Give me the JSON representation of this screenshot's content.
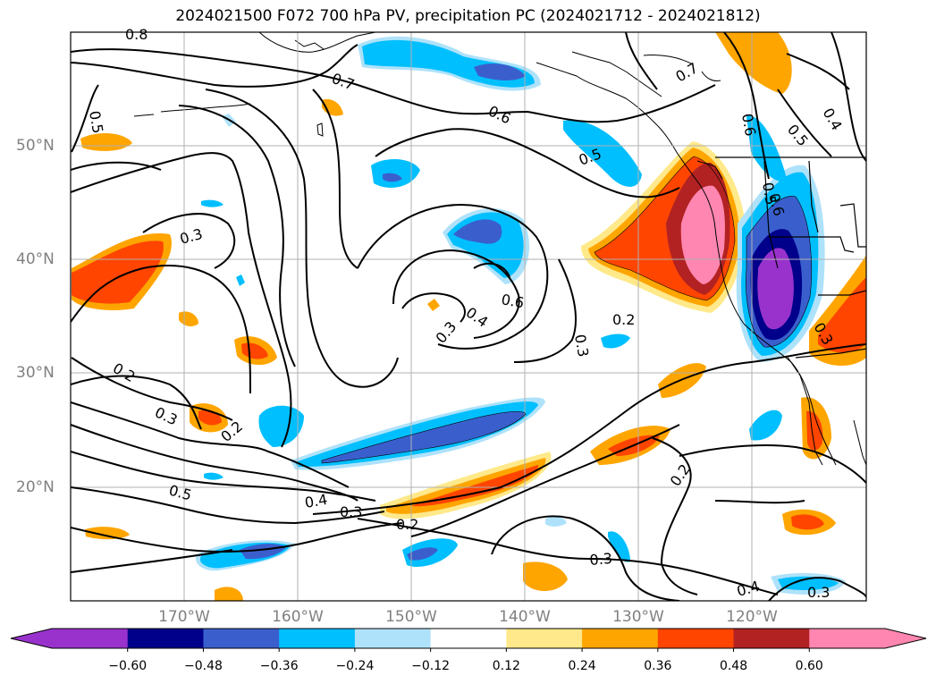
{
  "title": "2024021500 F072 700 hPa PV, precipitation PC (2024021712 - 2024021812)",
  "map": {
    "lat_labels": [
      "50°N",
      "40°N",
      "30°N",
      "20°N"
    ],
    "lon_labels": [
      "170°W",
      "160°W",
      "150°W",
      "140°W",
      "130°W",
      "120°W"
    ],
    "contour_labels": [
      "0.8",
      "0.5",
      "0.7",
      "0.6",
      "0.5",
      "0.7",
      "0.6",
      "0.5",
      "0.4",
      "0.5",
      "0.3",
      "0.6",
      "0.4",
      "0.3",
      "0.6",
      "0.2",
      "0.3",
      "0.2",
      "0.3",
      "0.2",
      "0.5",
      "0.4",
      "0.3",
      "0.2",
      "0.3",
      "0.2",
      "0.4",
      "0.3",
      "0.3"
    ]
  },
  "colorbar": {
    "ticks": [
      "−0.60",
      "−0.48",
      "−0.36",
      "−0.24",
      "−0.12",
      "0.12",
      "0.24",
      "0.36",
      "0.48",
      "0.60"
    ],
    "colors": [
      "#9932cc",
      "#00008b",
      "#3a5fcd",
      "#00bfff",
      "#aee2fa",
      "#ffffff",
      "#ffe98a",
      "#ffa500",
      "#ff4500",
      "#b22222",
      "#ff86b0",
      "#ff86b0"
    ]
  }
}
